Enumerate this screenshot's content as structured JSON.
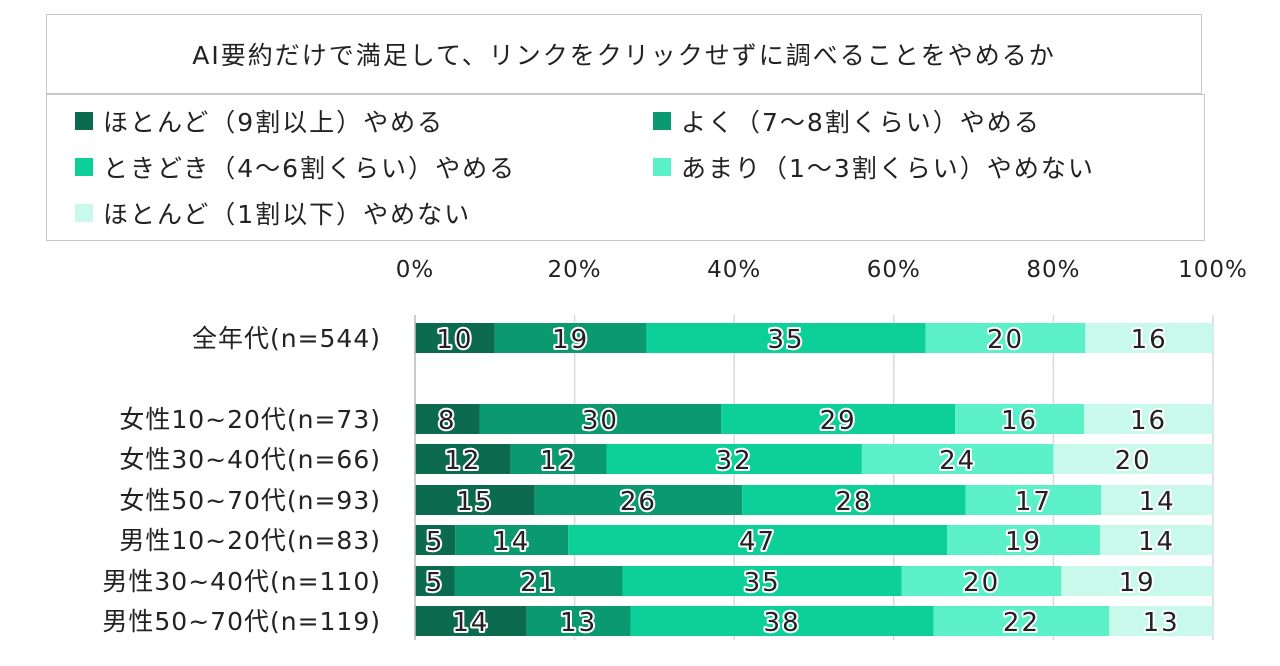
{
  "chart_data": {
    "type": "bar",
    "orientation": "horizontal",
    "stacked": true,
    "title": "AI要約だけで満足して、リンクをクリックせずに調べることをやめるか",
    "categories": [
      "全年代(n=544)",
      "女性10~20代(n=73)",
      "女性30~40代(n=66)",
      "女性50~70代(n=93)",
      "男性10~20代(n=83)",
      "男性30~40代(n=110)",
      "男性50~70代(n=119)"
    ],
    "series": [
      {
        "name": "ほとんど（9割以上）やめる",
        "color": "#0c6b4f",
        "values": [
          10,
          8,
          12,
          15,
          5,
          5,
          14
        ]
      },
      {
        "name": "よく（7～8割くらい）やめる",
        "color": "#0b9a70",
        "values": [
          19,
          30,
          12,
          26,
          14,
          21,
          13
        ]
      },
      {
        "name": "ときどき（4～6割くらい）やめる",
        "color": "#0dcf98",
        "values": [
          35,
          29,
          32,
          28,
          47,
          35,
          38
        ]
      },
      {
        "name": "あまり（1～3割くらい）やめない",
        "color": "#5cf0c8",
        "values": [
          20,
          16,
          24,
          17,
          19,
          20,
          22
        ]
      },
      {
        "name": "ほとんど（1割以下）やめない",
        "color": "#c9f9ea",
        "values": [
          16,
          16,
          20,
          14,
          14,
          19,
          13
        ]
      }
    ],
    "xlim": [
      0,
      100
    ],
    "xticks": [
      "0%",
      "20%",
      "40%",
      "60%",
      "80%",
      "100%"
    ],
    "grid": true,
    "legend_position": "top"
  }
}
